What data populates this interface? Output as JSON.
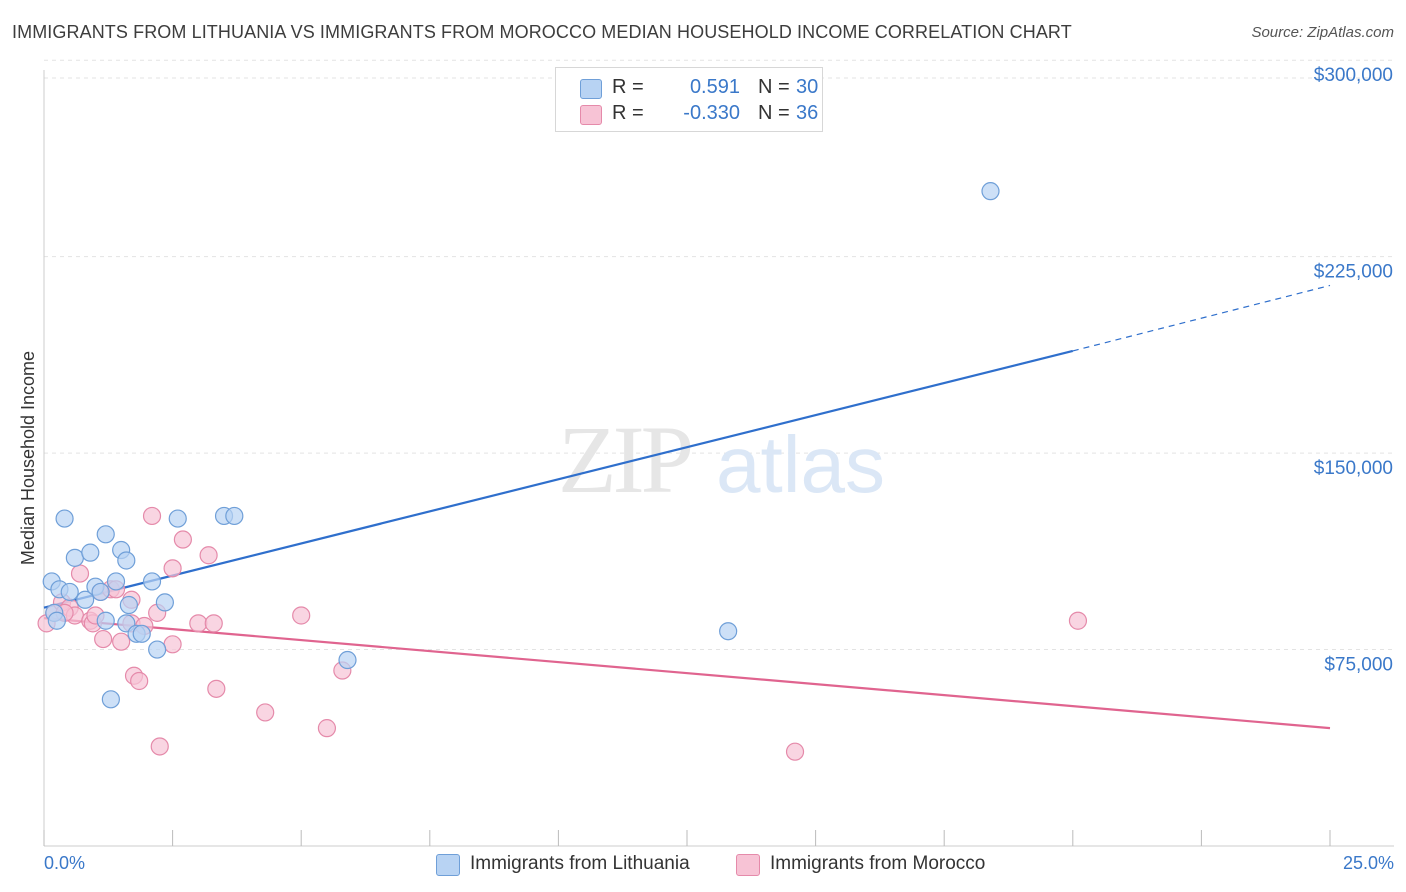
{
  "title": "IMMIGRANTS FROM LITHUANIA VS IMMIGRANTS FROM MOROCCO MEDIAN HOUSEHOLD INCOME CORRELATION CHART",
  "source": "Source: ZipAtlas.com",
  "watermark": {
    "zip": "ZIP",
    "atlas": "atlas"
  },
  "colors": {
    "lithuania_fill": "#b8d3f3",
    "lithuania_stroke": "#6f9fd8",
    "lithuania_line": "#2f6fcc",
    "morocco_fill": "#f7c3d5",
    "morocco_stroke": "#e58aaa",
    "morocco_line": "#e0648f",
    "tick_text": "#3a78c9",
    "grid": "#e3e3e3"
  },
  "legend": {
    "rows": [
      {
        "r_label": "R =",
        "r_value": "0.591",
        "n_label": "N =",
        "n_value": "30"
      },
      {
        "r_label": "R =",
        "r_value": "-0.330",
        "n_label": "N =",
        "n_value": "36"
      }
    ]
  },
  "chart_data": {
    "type": "scatter",
    "title": "IMMIGRANTS FROM LITHUANIA VS IMMIGRANTS FROM MOROCCO MEDIAN HOUSEHOLD INCOME CORRELATION CHART",
    "xlabel": "",
    "ylabel": "Median Household Income",
    "xlim": [
      0,
      25
    ],
    "ylim": [
      0,
      310000
    ],
    "x_tick_labels": [
      "0.0%",
      "25.0%"
    ],
    "y_ticks": [
      75000,
      150000,
      225000,
      300000
    ],
    "y_tick_labels": [
      "$75,000",
      "$150,000",
      "$225,000",
      "$300,000"
    ],
    "grid": true,
    "series": [
      {
        "name": "Immigrants from Lithuania",
        "r": 0.591,
        "n": 30,
        "points": [
          [
            0.15,
            101000
          ],
          [
            0.3,
            98000
          ],
          [
            0.4,
            125000
          ],
          [
            0.5,
            97000
          ],
          [
            0.6,
            110000
          ],
          [
            0.8,
            94000
          ],
          [
            0.9,
            112000
          ],
          [
            1.0,
            99000
          ],
          [
            1.1,
            97000
          ],
          [
            1.2,
            86000
          ],
          [
            1.2,
            119000
          ],
          [
            1.3,
            56000
          ],
          [
            1.4,
            101000
          ],
          [
            1.5,
            113000
          ],
          [
            1.6,
            85000
          ],
          [
            1.6,
            109000
          ],
          [
            1.65,
            92000
          ],
          [
            1.8,
            81000
          ],
          [
            1.9,
            81000
          ],
          [
            2.1,
            101000
          ],
          [
            2.2,
            75000
          ],
          [
            2.35,
            93000
          ],
          [
            2.6,
            125000
          ],
          [
            3.5,
            126000
          ],
          [
            3.7,
            126000
          ],
          [
            5.9,
            71000
          ],
          [
            13.3,
            82000
          ],
          [
            18.4,
            250000
          ],
          [
            0.2,
            89000
          ],
          [
            0.25,
            86000
          ]
        ],
        "trend": {
          "x_start": 0,
          "y_start": 91000,
          "x_solid_end": 20,
          "y_solid_end": 189000,
          "x_end": 25,
          "y_end": 214000,
          "dashed_after_solid": true
        }
      },
      {
        "name": "Immigrants from Morocco",
        "r": -0.33,
        "n": 36,
        "points": [
          [
            0.05,
            85000
          ],
          [
            0.2,
            89000
          ],
          [
            0.35,
            93000
          ],
          [
            0.5,
            91000
          ],
          [
            0.6,
            88000
          ],
          [
            0.7,
            104000
          ],
          [
            0.9,
            86000
          ],
          [
            0.95,
            85000
          ],
          [
            1.1,
            97000
          ],
          [
            1.15,
            79000
          ],
          [
            1.3,
            98000
          ],
          [
            1.4,
            98000
          ],
          [
            1.5,
            78000
          ],
          [
            1.7,
            85000
          ],
          [
            1.7,
            94000
          ],
          [
            1.75,
            65000
          ],
          [
            1.85,
            63000
          ],
          [
            1.95,
            84000
          ],
          [
            2.1,
            126000
          ],
          [
            2.2,
            89000
          ],
          [
            2.25,
            38000
          ],
          [
            2.5,
            106000
          ],
          [
            2.5,
            77000
          ],
          [
            2.7,
            117000
          ],
          [
            3.0,
            85000
          ],
          [
            3.2,
            111000
          ],
          [
            3.3,
            85000
          ],
          [
            3.35,
            60000
          ],
          [
            4.3,
            51000
          ],
          [
            5.0,
            88000
          ],
          [
            5.5,
            45000
          ],
          [
            5.8,
            67000
          ],
          [
            14.6,
            36000
          ],
          [
            20.1,
            86000
          ],
          [
            0.4,
            89000
          ],
          [
            1.0,
            88000
          ]
        ],
        "trend": {
          "x_start": 0,
          "y_start": 87000,
          "x_end": 25,
          "y_end": 45000
        }
      }
    ]
  },
  "bottom_legend": [
    {
      "label": "Immigrants from Lithuania"
    },
    {
      "label": "Immigrants from Morocco"
    }
  ]
}
